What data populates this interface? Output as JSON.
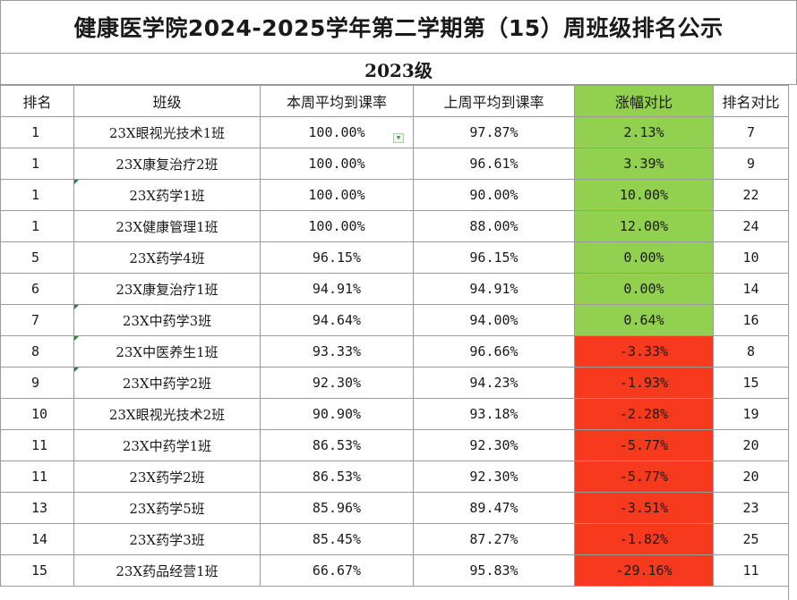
{
  "title": "健康医学院2024-2025学年第二学期第（15）周班级排名公示",
  "grade": "2023级",
  "headers": [
    "排名",
    "班级",
    "本周平均到课率",
    "上周平均到课率",
    "涨幅对比",
    "排名对比"
  ],
  "colors": {
    "positive": "#92d050",
    "negative": "#f73a1e",
    "grid": "#9a9a9a"
  },
  "rows": [
    {
      "rank": "1",
      "class": "23X眼视光技术1班",
      "this_week": "100.00%",
      "last_week": "97.87%",
      "change": "2.13%",
      "prev_rank": "7",
      "trend": "positive"
    },
    {
      "rank": "1",
      "class": "23X康复治疗2班",
      "this_week": "100.00%",
      "last_week": "96.61%",
      "change": "3.39%",
      "prev_rank": "9",
      "trend": "positive"
    },
    {
      "rank": "1",
      "class": "23X药学1班",
      "this_week": "100.00%",
      "last_week": "90.00%",
      "change": "10.00%",
      "prev_rank": "22",
      "trend": "positive"
    },
    {
      "rank": "1",
      "class": "23X健康管理1班",
      "this_week": "100.00%",
      "last_week": "88.00%",
      "change": "12.00%",
      "prev_rank": "24",
      "trend": "positive"
    },
    {
      "rank": "5",
      "class": "23X药学4班",
      "this_week": "96.15%",
      "last_week": "96.15%",
      "change": "0.00%",
      "prev_rank": "10",
      "trend": "positive"
    },
    {
      "rank": "6",
      "class": "23X康复治疗1班",
      "this_week": "94.91%",
      "last_week": "94.91%",
      "change": "0.00%",
      "prev_rank": "14",
      "trend": "positive"
    },
    {
      "rank": "7",
      "class": "23X中药学3班",
      "this_week": "94.64%",
      "last_week": "94.00%",
      "change": "0.64%",
      "prev_rank": "16",
      "trend": "positive"
    },
    {
      "rank": "8",
      "class": "23X中医养生1班",
      "this_week": "93.33%",
      "last_week": "96.66%",
      "change": "-3.33%",
      "prev_rank": "8",
      "trend": "negative"
    },
    {
      "rank": "9",
      "class": "23X中药学2班",
      "this_week": "92.30%",
      "last_week": "94.23%",
      "change": "-1.93%",
      "prev_rank": "15",
      "trend": "negative"
    },
    {
      "rank": "10",
      "class": "23X眼视光技术2班",
      "this_week": "90.90%",
      "last_week": "93.18%",
      "change": "-2.28%",
      "prev_rank": "19",
      "trend": "negative"
    },
    {
      "rank": "11",
      "class": "23X中药学1班",
      "this_week": "86.53%",
      "last_week": "92.30%",
      "change": "-5.77%",
      "prev_rank": "20",
      "trend": "negative"
    },
    {
      "rank": "11",
      "class": "23X药学2班",
      "this_week": "86.53%",
      "last_week": "92.30%",
      "change": "-5.77%",
      "prev_rank": "20",
      "trend": "negative"
    },
    {
      "rank": "13",
      "class": "23X药学5班",
      "this_week": "85.96%",
      "last_week": "89.47%",
      "change": "-3.51%",
      "prev_rank": "23",
      "trend": "negative"
    },
    {
      "rank": "14",
      "class": "23X药学3班",
      "this_week": "85.45%",
      "last_week": "87.27%",
      "change": "-1.82%",
      "prev_rank": "25",
      "trend": "negative"
    },
    {
      "rank": "15",
      "class": "23X药品经营1班",
      "this_week": "66.67%",
      "last_week": "95.83%",
      "change": "-29.16%",
      "prev_rank": "11",
      "trend": "negative"
    }
  ]
}
